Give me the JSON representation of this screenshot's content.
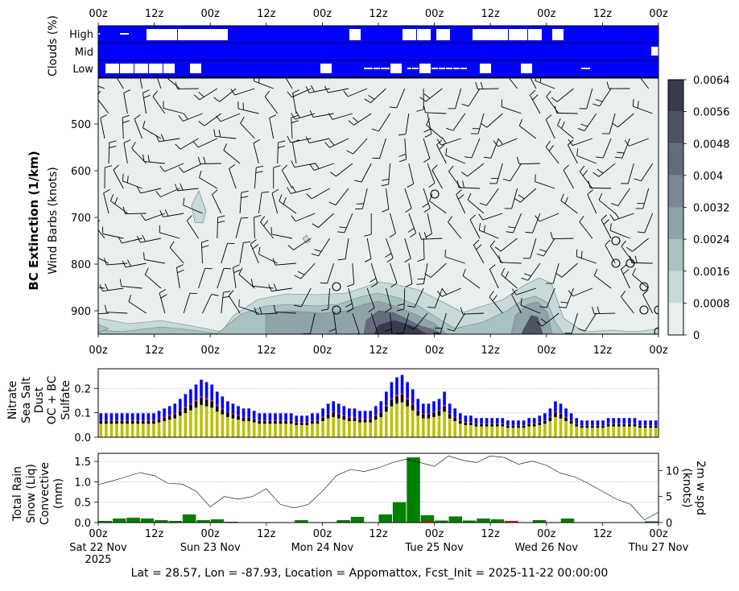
{
  "chart_data": [
    {
      "panel": "clouds",
      "type": "heatmap",
      "ylabel": "Clouds (%)",
      "rows": [
        "High",
        "Mid",
        "Low"
      ],
      "x_tick_labels": [
        "00z",
        "12z",
        "00z",
        "12z",
        "00z",
        "12z",
        "00z",
        "12z",
        "00z",
        "12z",
        "00z"
      ],
      "colors": {
        "fill": "#0000ff",
        "clear": "#ffffff"
      },
      "clear_segments": {
        "High": [
          [
            0,
            1
          ],
          [
            9,
            13
          ],
          [
            20,
            33
          ],
          [
            33,
            54
          ],
          [
            104,
            109
          ],
          [
            126,
            132
          ],
          [
            132,
            138
          ],
          [
            140,
            146
          ],
          [
            155,
            161
          ],
          [
            160,
            166
          ],
          [
            165,
            170
          ],
          [
            170,
            175
          ],
          [
            172,
            178
          ],
          [
            178,
            184
          ],
          [
            188,
            193
          ]
        ],
        "Mid": [
          [
            229,
            234
          ]
        ],
        "Low": [
          [
            3,
            9
          ],
          [
            9,
            15
          ],
          [
            15,
            21
          ],
          [
            21,
            27
          ],
          [
            27,
            32
          ],
          [
            38,
            43
          ],
          [
            92,
            97
          ],
          [
            110,
            114
          ],
          [
            114,
            117
          ],
          [
            117,
            121
          ],
          [
            121,
            126
          ],
          [
            128,
            130
          ],
          [
            130,
            133
          ],
          [
            133,
            138
          ],
          [
            138,
            141
          ],
          [
            141,
            144
          ],
          [
            144,
            147
          ],
          [
            147,
            150
          ],
          [
            150,
            153
          ],
          [
            158,
            163
          ],
          [
            175,
            180
          ],
          [
            200,
            204
          ]
        ]
      }
    },
    {
      "panel": "bc_extinction",
      "type": "heatmap",
      "ylabel": "BC Extinction (1/km)",
      "ylabel2": "Wind Barbs (knots)",
      "y_tick_labels": [
        "500",
        "600",
        "700",
        "800",
        "900"
      ],
      "x_tick_labels": [
        "00z",
        "12z",
        "00z",
        "12z",
        "00z",
        "12z",
        "00z",
        "12z",
        "00z",
        "12z",
        "00z"
      ],
      "colorbar_ticks": [
        "0",
        "0.0008",
        "0.0016",
        "0.0024",
        "0.0032",
        "0.004",
        "0.0048",
        "0.0056",
        "0.0064"
      ],
      "colorbar_colors": [
        "#e9efef",
        "#c8d9d9",
        "#a9c2c2",
        "#8fa3a8",
        "#7b8894",
        "#646c7c",
        "#4f5366",
        "#393b4c",
        "#24242e",
        "#111115"
      ]
    },
    {
      "panel": "aerosol",
      "type": "bar",
      "y_tick_labels": [
        "0.0",
        "0.1",
        "0.2"
      ],
      "ylim": [
        0,
        0.28
      ],
      "legend_labels": [
        "Nitrate",
        "Sea Salt",
        "Dust",
        "OC + BC",
        "Sulfate"
      ],
      "legend_colors": [
        "#008000",
        "#0000ff",
        "#ff0000",
        "#000000",
        "#bfbf00"
      ],
      "total": [
        0.1,
        0.1,
        0.1,
        0.1,
        0.1,
        0.1,
        0.1,
        0.1,
        0.1,
        0.1,
        0.1,
        0.11,
        0.12,
        0.13,
        0.14,
        0.16,
        0.18,
        0.2,
        0.22,
        0.24,
        0.23,
        0.22,
        0.19,
        0.17,
        0.15,
        0.14,
        0.13,
        0.12,
        0.12,
        0.11,
        0.1,
        0.1,
        0.1,
        0.1,
        0.1,
        0.1,
        0.1,
        0.09,
        0.09,
        0.09,
        0.1,
        0.1,
        0.12,
        0.14,
        0.15,
        0.14,
        0.13,
        0.12,
        0.12,
        0.11,
        0.11,
        0.11,
        0.13,
        0.15,
        0.19,
        0.23,
        0.25,
        0.26,
        0.23,
        0.2,
        0.16,
        0.14,
        0.14,
        0.15,
        0.16,
        0.19,
        0.14,
        0.12,
        0.1,
        0.09,
        0.09,
        0.08,
        0.08,
        0.08,
        0.08,
        0.08,
        0.08,
        0.07,
        0.07,
        0.07,
        0.07,
        0.08,
        0.08,
        0.09,
        0.1,
        0.12,
        0.15,
        0.14,
        0.12,
        0.1,
        0.08,
        0.07,
        0.07,
        0.07,
        0.07,
        0.07,
        0.08,
        0.08,
        0.08,
        0.08,
        0.08,
        0.08,
        0.07,
        0.07,
        0.07,
        0.07
      ],
      "sulfate_fraction": 0.55,
      "ocbc_fraction": 0.12,
      "dust_fraction": 0.02,
      "seasalt_fraction": 0.29
    },
    {
      "panel": "precip",
      "type": "bar",
      "ylabel": "(mm)",
      "legend_labels": [
        "Total Rain",
        "Snow (Liq)",
        "Convective"
      ],
      "legend_colors": [
        "#008000",
        "#0000ff",
        "#ff0000"
      ],
      "y_tick_labels": [
        "0.0",
        "0.5",
        "1.0",
        "1.5"
      ],
      "ylim": [
        0,
        1.7
      ],
      "y2label": "2m w spd\n(knots)",
      "y2_tick_labels": [
        "0",
        "5",
        "10"
      ],
      "y2lim": [
        0,
        13.3
      ],
      "x_tick_labels": [
        "00z",
        "12z",
        "00z",
        "12z",
        "00z",
        "12z",
        "00z",
        "12z",
        "00z",
        "12z",
        "00z"
      ],
      "date_labels": [
        "Sat 22 Nov\n2025",
        "Sun 23 Nov",
        "Mon 24 Nov",
        "Tue 25 Nov",
        "Wed 26 Nov",
        "Thu 27 Nov"
      ],
      "rain_hours": [
        0,
        3,
        6,
        9,
        12,
        15,
        18,
        21,
        24,
        27,
        30,
        33,
        36,
        39,
        42,
        45,
        48,
        51,
        54,
        57,
        60,
        63,
        66,
        69,
        72,
        75,
        78,
        81,
        84,
        87,
        90,
        93,
        96,
        99,
        102,
        105,
        108,
        111,
        114,
        117,
        120
      ],
      "rain_values": [
        0.04,
        0.1,
        0.12,
        0.1,
        0.06,
        0.04,
        0.2,
        0.06,
        0.08,
        0.02,
        0,
        0,
        0,
        0,
        0.06,
        0,
        0,
        0.06,
        0.14,
        0,
        0.2,
        0.5,
        1.6,
        0.18,
        0.05,
        0.15,
        0.05,
        0.1,
        0.08,
        0.04,
        0,
        0.06,
        0,
        0.1,
        0,
        0,
        0,
        0,
        0,
        0.03,
        0
      ],
      "convective_hours": [
        69,
        87
      ],
      "convective_values": [
        0.03,
        0.04
      ],
      "wind_hours": [
        0,
        3,
        6,
        9,
        12,
        15,
        18,
        21,
        24,
        27,
        30,
        33,
        36,
        39,
        42,
        45,
        48,
        51,
        54,
        57,
        60,
        63,
        66,
        69,
        72,
        75,
        78,
        81,
        84,
        87,
        90,
        93,
        96,
        99,
        102,
        105,
        108,
        111,
        114,
        117,
        120
      ],
      "wind_values": [
        7.3,
        8.0,
        8.8,
        9.6,
        9.0,
        7.5,
        7.4,
        6.0,
        3.0,
        5.0,
        4.5,
        5.0,
        6.5,
        3.5,
        2.8,
        3.5,
        6.0,
        9.0,
        10.2,
        9.8,
        10.5,
        11.5,
        12.2,
        11.5,
        10.8,
        12.8,
        12.0,
        11.5,
        12.8,
        12.5,
        11.2,
        11.8,
        11.0,
        9.5,
        8.8,
        7.5,
        6.0,
        4.5,
        3.5,
        0.5,
        2.0
      ]
    }
  ],
  "footer": "Lat = 28.57, Lon = -87.93, Location = Appomattox, Fcst_Init = 2025-11-22 00:00:00"
}
